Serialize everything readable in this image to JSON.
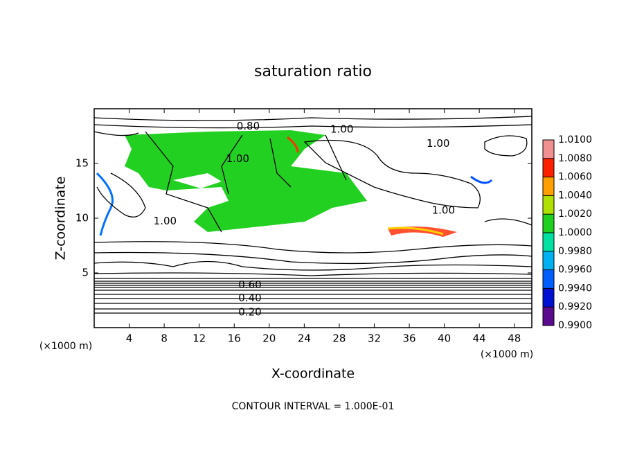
{
  "chart_data": {
    "type": "contour",
    "title": "saturation ratio",
    "x_label": "X-coordinate",
    "y_label": "Z-coordinate",
    "x_unit_label": "(×1000 m)",
    "y_unit_label": "(×1000 m)",
    "footnote": "CONTOUR INTERVAL = 1.000E-01",
    "xlim": [
      0,
      50
    ],
    "ylim": [
      0,
      20
    ],
    "xticks": [
      4,
      8,
      12,
      16,
      20,
      24,
      28,
      32,
      36,
      40,
      44,
      48
    ],
    "yticks": [
      5,
      10,
      15
    ],
    "contour_labels": [
      {
        "value": 0.8,
        "label": "0.80",
        "x": 17.6,
        "y": 18.4
      },
      {
        "value": 1.0,
        "label": "1.00",
        "x": 28.3,
        "y": 18.1
      },
      {
        "value": 1.0,
        "label": "1.00",
        "x": 39.3,
        "y": 16.8
      },
      {
        "value": 1.0,
        "label": "1.00",
        "x": 16.4,
        "y": 15.4
      },
      {
        "value": 1.0,
        "label": "1.00",
        "x": 8.1,
        "y": 9.7
      },
      {
        "value": 1.0,
        "label": "1.00",
        "x": 39.9,
        "y": 10.7
      },
      {
        "value": 0.6,
        "label": "0.60",
        "x": 17.8,
        "y": 3.9
      },
      {
        "value": 0.4,
        "label": "0.40",
        "x": 17.8,
        "y": 2.7
      },
      {
        "value": 0.2,
        "label": "0.20",
        "x": 17.8,
        "y": 1.4
      }
    ],
    "colorbar": {
      "lim": [
        0.99,
        1.01
      ],
      "ticks": [
        {
          "value": 0.99,
          "label": "0.9900"
        },
        {
          "value": 0.992,
          "label": "0.9920"
        },
        {
          "value": 0.994,
          "label": "0.9940"
        },
        {
          "value": 0.996,
          "label": "0.9960"
        },
        {
          "value": 0.998,
          "label": "0.9980"
        },
        {
          "value": 1.0,
          "label": "1.0000"
        },
        {
          "value": 1.002,
          "label": "1.0020"
        },
        {
          "value": 1.004,
          "label": "1.0040"
        },
        {
          "value": 1.006,
          "label": "1.0060"
        },
        {
          "value": 1.008,
          "label": "1.0080"
        },
        {
          "value": 1.01,
          "label": "1.0100"
        }
      ],
      "colors": [
        "#5a0a8c",
        "#0010d0",
        "#0060ff",
        "#00b0f0",
        "#00e0a0",
        "#20d020",
        "#b0e000",
        "#ffa000",
        "#ff2000",
        "#f09090"
      ]
    }
  }
}
